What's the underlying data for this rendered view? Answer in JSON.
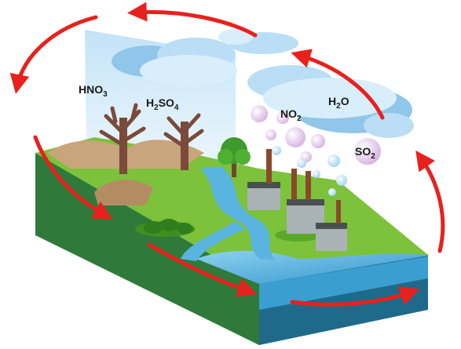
{
  "labels": {
    "hno3": {
      "base": "HNO",
      "sub": "3"
    },
    "h2so4": {
      "base1": "H",
      "sub1": "2",
      "base2": "SO",
      "sub2": "4"
    },
    "no2": {
      "base": "NO",
      "sub": "2"
    },
    "h2o": {
      "base1": "H",
      "sub1": "2",
      "base2": "O"
    },
    "so2": {
      "base": "SO",
      "sub": "2"
    }
  },
  "colors": {
    "cycle_arrow": "#e8211c",
    "cloud": "#d8eefb",
    "cloud_shadow": "#8fc6ea",
    "rain_haze": "#cfe9f8",
    "grass": "#7cc23a",
    "grass_dark": "#3f8f1e",
    "soil": "#c8a57c",
    "water": "#4aa7d8",
    "block_side": "#2f7a3a",
    "bubble": "#f3e6f7"
  },
  "icons": {
    "cycle": "cycle-arrow-icon",
    "tree": "tree-icon",
    "factory": "factory-icon"
  }
}
